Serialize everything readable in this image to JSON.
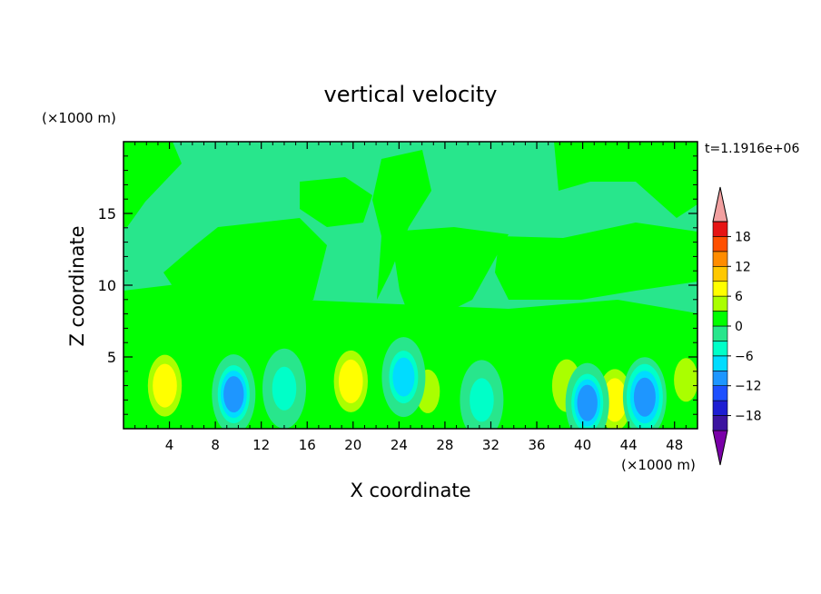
{
  "chart_data": {
    "type": "heatmap",
    "title": "vertical velocity",
    "xlabel": "X coordinate",
    "ylabel": "Z coordinate",
    "x_unit": "(×1000 m)",
    "y_unit": "(×1000 m)",
    "time_label": "t=1.1916e+06",
    "xlim": [
      0,
      50
    ],
    "ylim": [
      0,
      20
    ],
    "x_ticks": [
      4,
      8,
      12,
      16,
      20,
      24,
      28,
      32,
      36,
      40,
      44,
      48
    ],
    "y_ticks": [
      5,
      10,
      15
    ],
    "colorbar": {
      "levels": [
        -21,
        -18,
        -15,
        -12,
        -9,
        -6,
        -3,
        0,
        3,
        6,
        9,
        12,
        15,
        18,
        21
      ],
      "tick_labels": [
        -18,
        -12,
        -6,
        0,
        6,
        12,
        18
      ],
      "colors": [
        "#7a00a8",
        "#3c14a0",
        "#1e1ed2",
        "#1e50ff",
        "#1e96ff",
        "#00dcff",
        "#00ffc8",
        "#28e68c",
        "#00ff00",
        "#aaff00",
        "#ffff00",
        "#ffc800",
        "#ff8c00",
        "#ff5000",
        "#e61414",
        "#f2a0a0"
      ]
    },
    "features": [
      {
        "x": 3.6,
        "z": 3.0,
        "value": 7
      },
      {
        "x": 19.8,
        "z": 3.3,
        "value": 7
      },
      {
        "x": 42.8,
        "z": 2.0,
        "value": 6
      },
      {
        "x": 26.5,
        "z": 2.6,
        "value": 5
      },
      {
        "x": 49.0,
        "z": 3.4,
        "value": 5
      },
      {
        "x": 38.6,
        "z": 3.0,
        "value": 4
      },
      {
        "x": 9.6,
        "z": 2.4,
        "value": -11
      },
      {
        "x": 40.4,
        "z": 1.8,
        "value": -12
      },
      {
        "x": 45.4,
        "z": 2.2,
        "value": -10
      },
      {
        "x": 24.4,
        "z": 3.6,
        "value": -9
      },
      {
        "x": 31.2,
        "z": 2.0,
        "value": -6
      },
      {
        "x": 14.0,
        "z": 2.8,
        "value": -6
      }
    ]
  }
}
